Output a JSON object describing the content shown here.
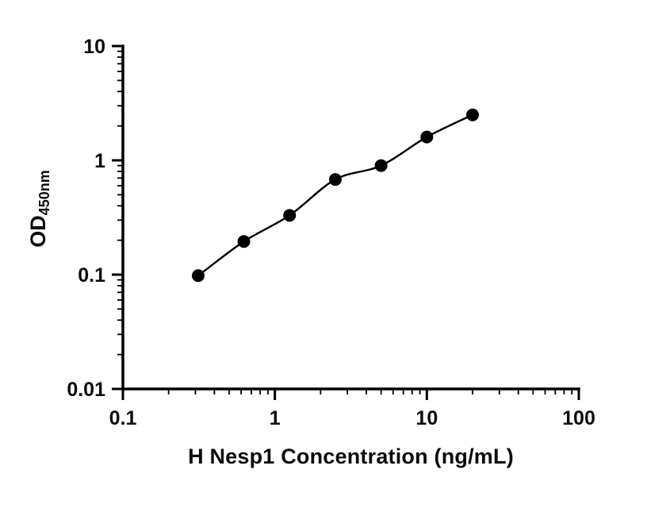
{
  "chart_data": {
    "type": "scatter",
    "title": "",
    "xlabel": "H Nesp1 Concentration (ng/mL)",
    "ylabel": "OD450nm",
    "ylabel_main": "OD",
    "ylabel_sub": "450nm",
    "x_scale": "log",
    "y_scale": "log",
    "xlim": [
      0.1,
      100
    ],
    "ylim": [
      0.01,
      10
    ],
    "x_tick_values": [
      0.1,
      1,
      10,
      100
    ],
    "x_tick_labels": [
      "0.1",
      "1",
      "10",
      "100"
    ],
    "y_tick_values": [
      10,
      1,
      0.1,
      0.01
    ],
    "y_tick_labels": [
      "10",
      "1",
      "0.1",
      "0.01"
    ],
    "grid": false,
    "legend": false,
    "marker": {
      "shape": "circle",
      "color": "#000000",
      "radius": 8
    },
    "line_color": "#000000",
    "axis_color": "#000000",
    "points": [
      {
        "x": 0.313,
        "y": 0.098
      },
      {
        "x": 0.625,
        "y": 0.195
      },
      {
        "x": 1.25,
        "y": 0.33
      },
      {
        "x": 2.5,
        "y": 0.68
      },
      {
        "x": 5,
        "y": 0.9
      },
      {
        "x": 10,
        "y": 1.6
      },
      {
        "x": 20,
        "y": 2.5
      }
    ]
  }
}
